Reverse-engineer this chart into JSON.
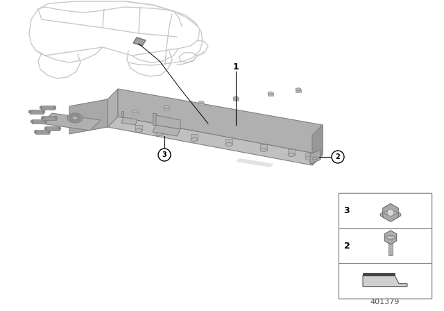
{
  "background_color": "#ffffff",
  "diagram_number": "401379",
  "car_color": "#c8c8c8",
  "car_lw": 1.0,
  "component_top_color": "#c0c0c0",
  "component_front_color": "#b0b0b0",
  "component_right_color": "#989898",
  "component_edge_color": "#808080",
  "stud_color": "#b8b8b8",
  "port_color": "#a0a0a0",
  "bracket_color": "#b4b4b4",
  "legend_border": "#888888",
  "callout_r": 0.018
}
